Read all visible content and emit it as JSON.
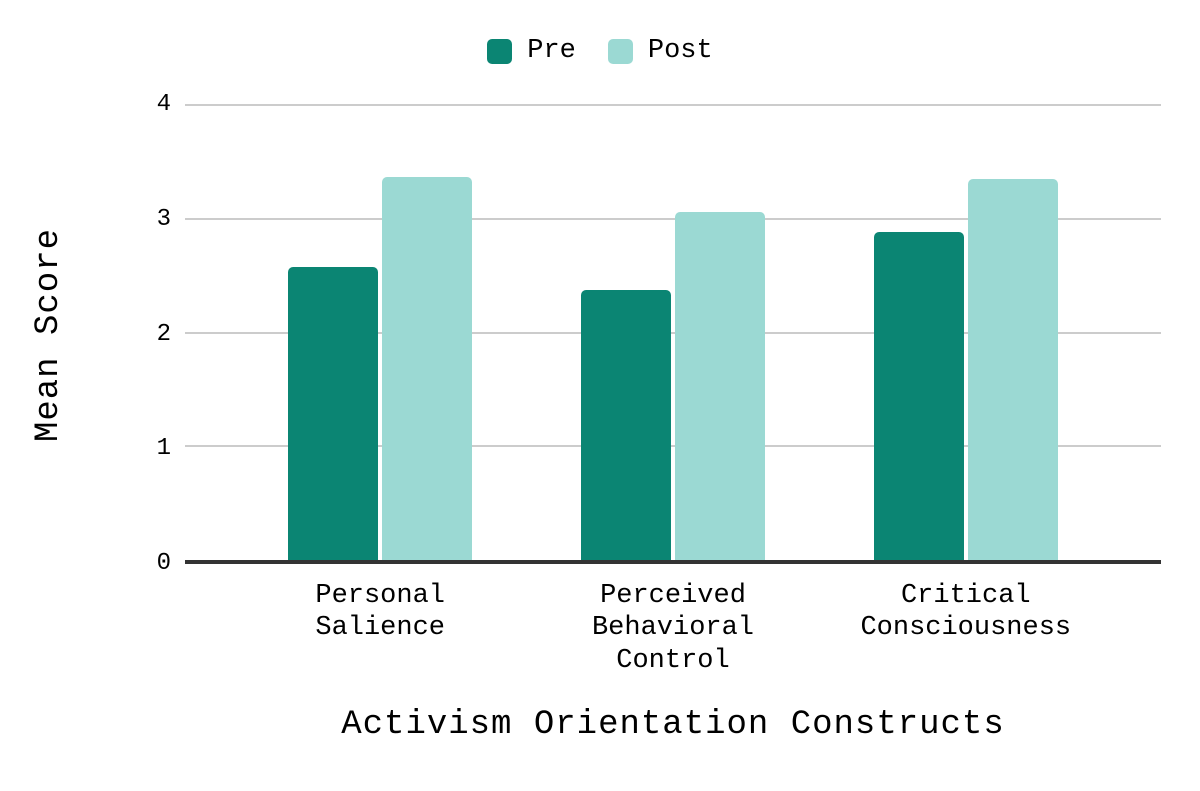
{
  "chart_data": {
    "type": "bar",
    "title": "",
    "categories": [
      "Personal Salience",
      "Perceived Behavioral Control",
      "Critical Consciousness"
    ],
    "series": [
      {
        "name": "Pre",
        "color": "#0b8573",
        "values": [
          2.58,
          2.37,
          2.88
        ]
      },
      {
        "name": "Post",
        "color": "#9bd9d3",
        "values": [
          3.37,
          3.06,
          3.35
        ]
      }
    ],
    "xlabel": "Activism Orientation Constructs",
    "ylabel": "Mean Score",
    "ylim": [
      0,
      4
    ],
    "yticks": [
      0,
      1,
      2,
      3,
      4
    ],
    "grid": true,
    "legend_position": "top",
    "colors": {
      "gridline": "#cccccc",
      "axis_line": "#333333",
      "text": "#000000",
      "background": "#ffffff"
    }
  }
}
